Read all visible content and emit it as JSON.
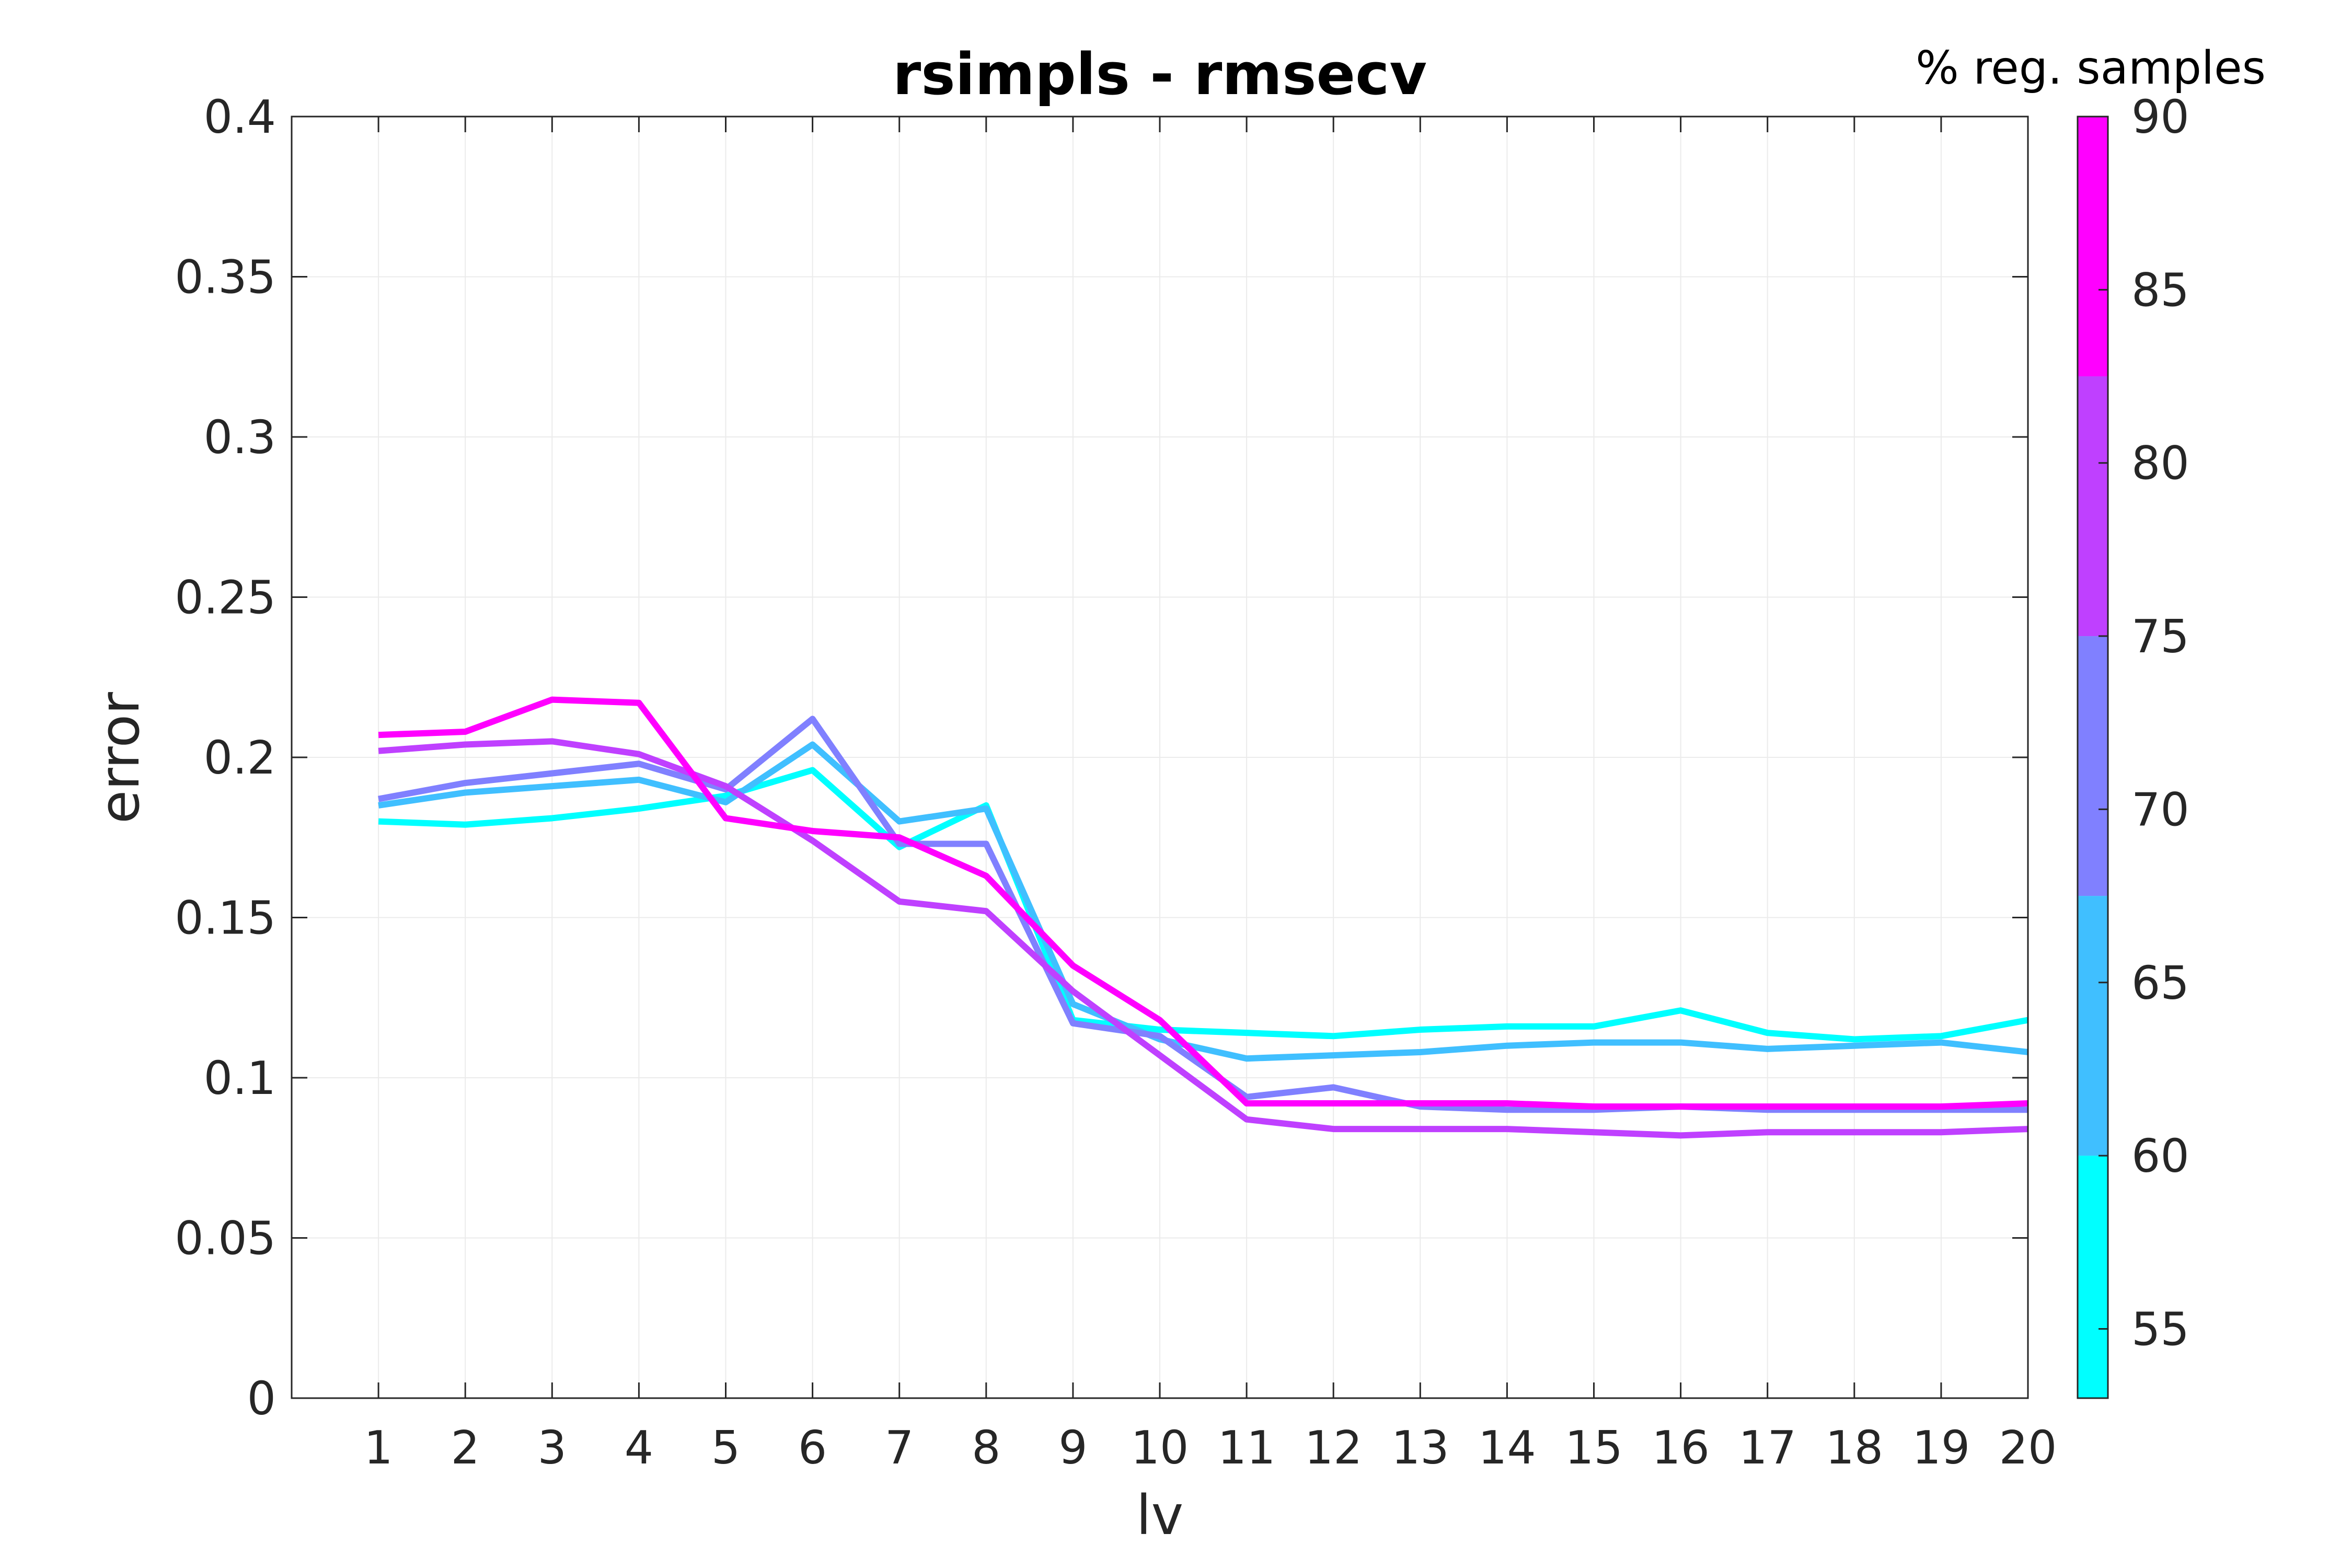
{
  "chart_data": {
    "type": "line",
    "title": "rsimpls - rmsecv",
    "xlabel": "lv",
    "ylabel": "error",
    "xlim": [
      0,
      20
    ],
    "ylim": [
      0,
      0.4
    ],
    "x": [
      1,
      2,
      3,
      4,
      5,
      6,
      7,
      8,
      9,
      10,
      11,
      12,
      13,
      14,
      15,
      16,
      17,
      18,
      19,
      20
    ],
    "x_ticks": [
      "1",
      "2",
      "3",
      "4",
      "5",
      "6",
      "7",
      "8",
      "9",
      "10",
      "11",
      "12",
      "13",
      "14",
      "15",
      "16",
      "17",
      "18",
      "19",
      "20"
    ],
    "y_ticks": [
      0,
      0.05,
      0.1,
      0.15,
      0.2,
      0.25,
      0.3,
      0.35,
      0.4
    ],
    "y_tick_labels": [
      "0",
      "0.05",
      "0.1",
      "0.15",
      "0.2",
      "0.25",
      "0.3",
      "0.35",
      "0.4"
    ],
    "grid": true,
    "series": [
      {
        "color": "#00FFFF",
        "values": [
          0.18,
          0.179,
          0.181,
          0.184,
          0.188,
          0.196,
          0.172,
          0.185,
          0.118,
          0.115,
          0.114,
          0.113,
          0.115,
          0.116,
          0.116,
          0.121,
          0.114,
          0.112,
          0.113,
          0.118
        ]
      },
      {
        "color": "#40BFFF",
        "values": [
          0.185,
          0.189,
          0.191,
          0.193,
          0.186,
          0.204,
          0.18,
          0.184,
          0.123,
          0.112,
          0.106,
          0.107,
          0.108,
          0.11,
          0.111,
          0.111,
          0.109,
          0.11,
          0.111,
          0.108
        ]
      },
      {
        "color": "#8080FF",
        "values": [
          0.187,
          0.192,
          0.195,
          0.198,
          0.19,
          0.212,
          0.173,
          0.173,
          0.117,
          0.113,
          0.094,
          0.097,
          0.091,
          0.09,
          0.09,
          0.091,
          0.09,
          0.09,
          0.09,
          0.09
        ]
      },
      {
        "color": "#BF40FF",
        "values": [
          0.202,
          0.204,
          0.205,
          0.201,
          0.191,
          0.174,
          0.155,
          0.152,
          0.127,
          0.107,
          0.087,
          0.084,
          0.084,
          0.084,
          0.083,
          0.082,
          0.083,
          0.083,
          0.083,
          0.084
        ]
      },
      {
        "color": "#FF00FF",
        "values": [
          0.207,
          0.208,
          0.218,
          0.217,
          0.181,
          0.177,
          0.175,
          0.163,
          0.135,
          0.118,
          0.092,
          0.092,
          0.092,
          0.092,
          0.091,
          0.091,
          0.091,
          0.091,
          0.091,
          0.092
        ]
      }
    ],
    "colorbar": {
      "title": "% reg. samples",
      "range": [
        53,
        90
      ],
      "ticks": [
        55,
        60,
        65,
        70,
        75,
        80,
        85,
        90
      ],
      "tick_labels": [
        "55",
        "60",
        "65",
        "70",
        "75",
        "80",
        "85",
        "90"
      ],
      "bins": [
        {
          "from": 53,
          "to": 60,
          "color": "#00FFFF"
        },
        {
          "from": 60,
          "to": 67.5,
          "color": "#40BFFF"
        },
        {
          "from": 67.5,
          "to": 75,
          "color": "#8080FF"
        },
        {
          "from": 75,
          "to": 82.5,
          "color": "#BF40FF"
        },
        {
          "from": 82.5,
          "to": 90,
          "color": "#FF00FF"
        }
      ]
    }
  }
}
